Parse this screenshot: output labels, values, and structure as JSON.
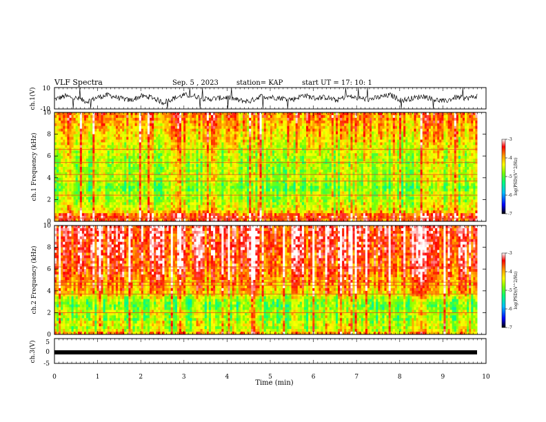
{
  "header": {
    "title": "VLF Spectra",
    "date": "Sep. 5 , 2023",
    "station": "station= KAP",
    "start": "start UT = 17: 10: 1"
  },
  "colors": {
    "spectrogram_base": "#8ce600",
    "colormap": [
      "#000000",
      "#0000ff",
      "#00bfff",
      "#00ff7f",
      "#7fff00",
      "#ffff00",
      "#ff9900",
      "#ff0000",
      "#ffffff"
    ]
  },
  "chart_data": [
    {
      "type": "line",
      "name": "ch1-trace",
      "ylabel": "ch.1(V)",
      "ylim": [
        -10,
        10
      ],
      "ytick_labels": [
        "10",
        "-10"
      ],
      "xlim": [
        0,
        10
      ],
      "x_end": 9.8,
      "y_values_sampled": [
        -1,
        2,
        0,
        -3,
        1,
        3,
        0,
        -2,
        2,
        1,
        -4,
        0,
        3,
        2,
        -1,
        0,
        1,
        -2,
        -3,
        2,
        1,
        0,
        -1,
        3,
        0,
        1,
        -2,
        2,
        0,
        -1,
        1,
        3,
        -2,
        0,
        2,
        -1,
        -3,
        1,
        0,
        2
      ]
    },
    {
      "type": "heatmap",
      "name": "ch1-spectrogram",
      "ylabel": "ch.1 Frequency (kHz)",
      "ylim": [
        0,
        10
      ],
      "ytick_labels": [
        "0",
        "2",
        "4",
        "6",
        "8",
        "10"
      ],
      "xlim": [
        0,
        10
      ],
      "x_end": 9.8,
      "colorbar": {
        "label": "log(PSD)(V^2/Hz)",
        "range": [
          -7,
          -3
        ],
        "tick_labels": [
          "-3",
          "-4",
          "-5",
          "-6",
          "-7"
        ]
      },
      "band_profile_khz": [
        [
          0,
          -3.6
        ],
        [
          0.5,
          -3.4
        ],
        [
          1,
          -4.3
        ],
        [
          1.5,
          -4.4
        ],
        [
          2,
          -4.6
        ],
        [
          2.5,
          -4.5
        ],
        [
          3,
          -4.9
        ],
        [
          3.5,
          -4.7
        ],
        [
          4,
          -4.5
        ],
        [
          5,
          -4.6
        ],
        [
          6,
          -4.5
        ],
        [
          7,
          -4.3
        ],
        [
          8,
          -4.1
        ],
        [
          9,
          -3.9
        ],
        [
          10,
          -3.7
        ]
      ],
      "lines_khz": [
        0.3,
        2.4,
        3.7,
        4.3,
        5.4,
        6.6
      ]
    },
    {
      "type": "heatmap",
      "name": "ch2-spectrogram",
      "ylabel": "ch.2 Frequency (kHz)",
      "ylim": [
        0,
        10
      ],
      "ytick_labels": [
        "0",
        "2",
        "4",
        "6",
        "8",
        "10"
      ],
      "xlim": [
        0,
        10
      ],
      "x_end": 9.8,
      "colorbar": {
        "label": "log(PSD)(V^2/Hz)",
        "range": [
          -7,
          -3
        ],
        "tick_labels": [
          "-3",
          "-4",
          "-5",
          "-6",
          "-7"
        ]
      },
      "band_profile_khz": [
        [
          0,
          -3.8
        ],
        [
          0.5,
          -4.6
        ],
        [
          1,
          -4.4
        ],
        [
          1.5,
          -4.8
        ],
        [
          2,
          -4.5
        ],
        [
          2.5,
          -4.9
        ],
        [
          3,
          -4.8
        ],
        [
          3.5,
          -4.4
        ],
        [
          4,
          -4.0
        ],
        [
          5,
          -3.8
        ],
        [
          6,
          -3.6
        ],
        [
          7,
          -3.5
        ],
        [
          8,
          -3.4
        ],
        [
          9,
          -3.4
        ],
        [
          10,
          -3.3
        ]
      ],
      "lines_khz": [
        2.0,
        3.7,
        4.5,
        4.8,
        6.2
      ]
    },
    {
      "type": "line",
      "name": "ch3-trace",
      "ylabel": "ch.3(V)",
      "ylim": [
        -5,
        5
      ],
      "ytick_labels": [
        "5",
        "0",
        "-5"
      ],
      "xlim": [
        0,
        10
      ],
      "x_end": 9.8,
      "constant_value": 0
    }
  ],
  "xaxis": {
    "label": "Time (min)",
    "tick_labels": [
      "0",
      "1",
      "2",
      "3",
      "4",
      "5",
      "6",
      "7",
      "8",
      "9",
      "10"
    ]
  }
}
